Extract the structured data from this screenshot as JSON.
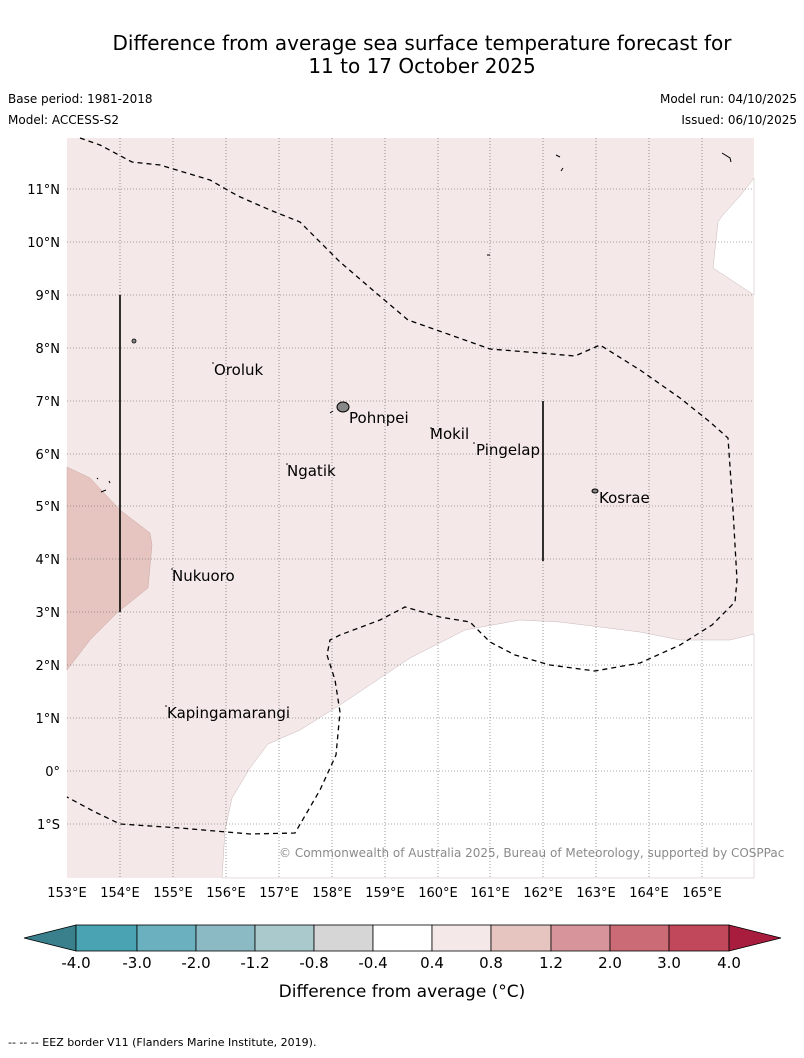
{
  "header": {
    "title_line1": "Difference from average sea surface temperature forecast for",
    "title_line2": "11 to 17 October 2025",
    "base_period": "Base period: 1981-2018",
    "model": "Model: ACCESS-S2",
    "model_run": "Model run: 04/10/2025",
    "issued": "Issued: 06/10/2025"
  },
  "map": {
    "lon_labels": [
      "153°E",
      "154°E",
      "155°E",
      "156°E",
      "157°E",
      "158°E",
      "159°E",
      "160°E",
      "161°E",
      "162°E",
      "163°E",
      "164°E",
      "165°E"
    ],
    "lat_labels": [
      "11°N",
      "10°N",
      "9°N",
      "8°N",
      "7°N",
      "6°N",
      "5°N",
      "4°N",
      "3°N",
      "2°N",
      "1°N",
      "0°",
      "1°S"
    ],
    "places": [
      "Oroluk",
      "Pohnpei",
      "Mokil",
      "Pingelap",
      "Ngatik",
      "Kosrae",
      "Nukuoro",
      "Kapingamarangi"
    ],
    "copyright": "© Commonwealth of Australia 2025, Bureau of Meteorology, supported by COSPPac"
  },
  "legend": {
    "ticks": [
      "-4.0",
      "-3.0",
      "-2.0",
      "-1.2",
      "-0.8",
      "-0.4",
      "0.4",
      "0.8",
      "1.2",
      "2.0",
      "3.0",
      "4.0"
    ],
    "colors": [
      "#3a7f8c",
      "#4aa3b3",
      "#6bb0bf",
      "#8bbac5",
      "#a9c9cd",
      "#d6d6d6",
      "#ffffff",
      "#f4e8e8",
      "#e6c5c1",
      "#d8949b",
      "#cb6b75",
      "#c0485a",
      "#a81c3e"
    ],
    "label": "Difference from average (°C)"
  },
  "footer": {
    "eez_note": "--  --  -- EEZ border V11 (Flanders Marine Institute, 2019)."
  }
}
